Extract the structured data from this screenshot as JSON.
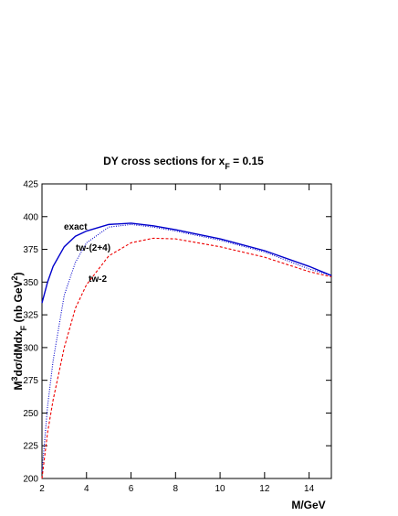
{
  "chart_data": {
    "type": "line",
    "title": [
      "DY cross sections  for x",
      "F",
      " = 0.15"
    ],
    "y_label": [
      "M",
      "3",
      "dσ/dMdx",
      "F",
      " (nb GeV",
      "2",
      ")"
    ],
    "x_label": "M/GeV",
    "x": [
      2,
      2.25,
      2.5,
      3,
      3.5,
      4,
      5,
      6,
      7,
      8,
      10,
      12,
      14,
      15
    ],
    "series": [
      {
        "name": "exact",
        "color": "#0000cc",
        "dash": "solid",
        "values": [
          334,
          350,
          362,
          377,
          385,
          389,
          394,
          395,
          393,
          390,
          383,
          374,
          362,
          355
        ]
      },
      {
        "name": "tw-(2+4)",
        "color": "#0000cc",
        "dash": "dotted",
        "values": [
          205,
          255,
          290,
          340,
          365,
          380,
          392,
          394,
          392,
          389,
          382,
          373,
          360,
          355
        ]
      },
      {
        "name": "tw-2",
        "color": "#ee0000",
        "dash": "dashed",
        "values": [
          200,
          235,
          260,
          300,
          330,
          348,
          370,
          380,
          383.5,
          383,
          377,
          369,
          358,
          354
        ]
      }
    ],
    "xlim": [
      2,
      15
    ],
    "xticks": [
      2,
      4,
      6,
      8,
      10,
      12,
      14
    ],
    "ylim": [
      200,
      425
    ],
    "yticks": [
      200,
      225,
      250,
      275,
      300,
      325,
      350,
      375,
      400,
      425
    ],
    "grid": false
  }
}
